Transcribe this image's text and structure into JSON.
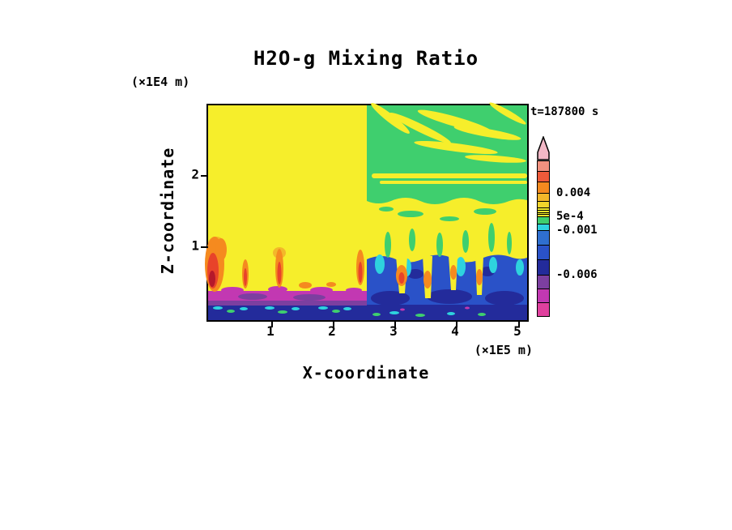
{
  "title": "H2O-g Mixing Ratio",
  "time_label": "t=187800 s",
  "axes": {
    "x": {
      "label": "X-coordinate",
      "units": "(×1E5 m)",
      "tick_labels": [
        "1",
        "2",
        "3",
        "4",
        "5"
      ]
    },
    "y": {
      "label": "Z-coordinate",
      "units": "(×1E4 m)",
      "tick_labels": [
        "2",
        "1"
      ]
    }
  },
  "colorbar": {
    "labels": [
      {
        "text": "0.004"
      },
      {
        "text": "5e-4"
      },
      {
        "text": "-0.001"
      },
      {
        "text": "-0.006"
      }
    ],
    "segments": [
      {
        "h": 13,
        "color": "#f2917f"
      },
      {
        "h": 13,
        "color": "#ef5a3a"
      },
      {
        "h": 14,
        "color": "#f58a1f"
      },
      {
        "h": 10,
        "color": "#f3b82a"
      },
      {
        "h": 8,
        "color": "#f2d52b"
      },
      {
        "h": 3,
        "color": "#f6ee2b"
      },
      {
        "h": 3,
        "color": "#f0e42c"
      },
      {
        "h": 2,
        "color": "#f6ee2b"
      },
      {
        "h": 3,
        "color": "#f0e42c"
      },
      {
        "h": 9,
        "color": "#3fcf6e"
      },
      {
        "h": 8,
        "color": "#2ed3de"
      },
      {
        "h": 18,
        "color": "#2f6fd0"
      },
      {
        "h": 18,
        "color": "#2a52c8"
      },
      {
        "h": 19,
        "color": "#232b9b"
      },
      {
        "h": 17,
        "color": "#7c3fa0"
      },
      {
        "h": 17,
        "color": "#c238b2"
      },
      {
        "h": 17,
        "color": "#e0409e"
      }
    ]
  },
  "palette": {
    "yellow": "#f6ee2b",
    "green": "#3fcf6e",
    "cyan": "#2ed3de",
    "blue": "#2a52c8",
    "navy": "#232b9b",
    "purple": "#7c3fa0",
    "magenta": "#c238b2",
    "pink": "#e0409e",
    "salmon": "#f2917f",
    "red": "#e8432a",
    "darkred": "#b5192a",
    "orange": "#f58a1f",
    "gold": "#f3b82a",
    "arrowpink": "#f2b8c6",
    "frame": "#000000",
    "bg": "#ffffff"
  },
  "chart_data": {
    "type": "heatmap",
    "title": "H2O-g Mixing Ratio",
    "xlabel": "X-coordinate",
    "ylabel": "Z-coordinate",
    "x_units_scale": "×1E5 m",
    "y_units_scale": "×1E4 m",
    "x_ticks": [
      1,
      2,
      3,
      4,
      5
    ],
    "y_ticks": [
      1,
      2
    ],
    "xlim": [
      0,
      5.2
    ],
    "ylim": [
      0,
      3.0
    ],
    "time_annotation": "t=187800 s",
    "time_seconds": 187800,
    "grid": false,
    "colorbar_orientation": "vertical-right",
    "colorbar_tick_values": [
      0.004,
      0.0005,
      -0.001,
      -0.006
    ],
    "colorbar_top_to_bottom_colors": [
      "pink-arrow",
      "salmon",
      "red-orange",
      "orange",
      "gold",
      "yellow bands",
      "green",
      "cyan",
      "blue",
      "navy",
      "purple",
      "magenta",
      "pink"
    ],
    "regions": [
      {
        "area": "bulk of domain above surface layer",
        "approx_value": "0.001 to 0.004",
        "color": "yellow"
      },
      {
        "area": "upper-right quadrant (x > 2.6, z > 1.2)",
        "approx_value": "0 to 5e-4",
        "color": "green with yellow fallstreak bands and a double horizontal yellow stripe near z = 2"
      },
      {
        "area": "surface layer (z < 0.25) across full width",
        "approx_value": "-0.001 to -0.006",
        "color": "navy with cyan/green speckles"
      },
      {
        "area": "left half, z ≈ 0.25–0.5",
        "approx_value": "below -0.006",
        "color": "magenta/purple band"
      },
      {
        "area": "right half, z ≈ 0.3–1.0",
        "approx_value": "-0.001 to -0.006 with embedded updrafts",
        "color": "blue/cyan/green patches, yellow-orange plumes"
      },
      {
        "area": "left edge and narrow plume cores near x ≈ 0, 0.6, 1.2, 2.5 at z ≈ 0.4–1.0",
        "approx_value": "above 0.004",
        "color": "orange/red"
      }
    ]
  }
}
